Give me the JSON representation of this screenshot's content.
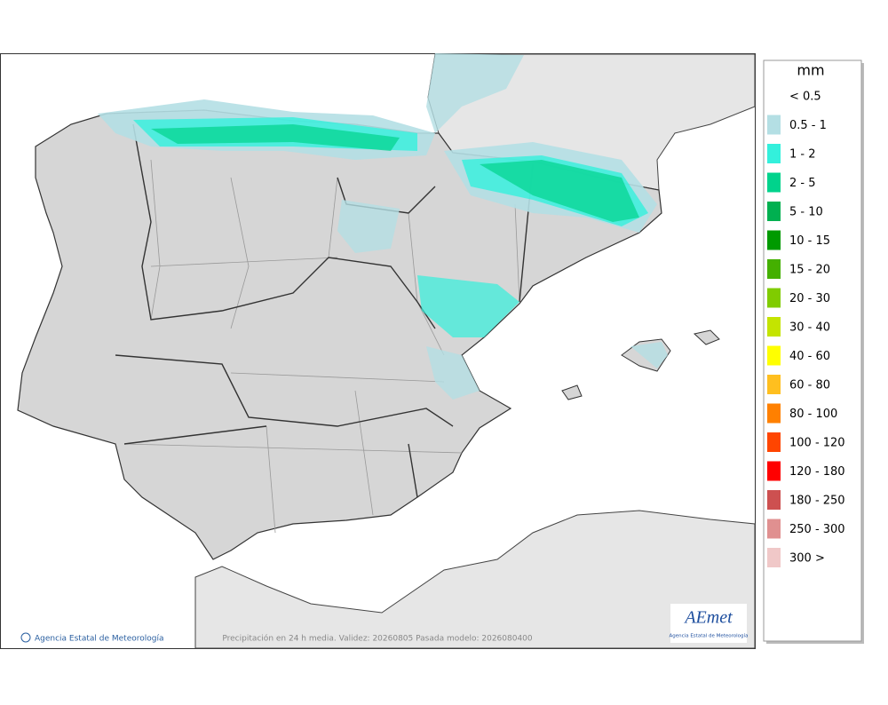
{
  "legend": {
    "title": "mm",
    "items": [
      {
        "label": "< 0.5",
        "color": "#ffffff"
      },
      {
        "label": "0.5 - 1",
        "color": "#b4dfe4"
      },
      {
        "label": "1 - 2",
        "color": "#33f0dc"
      },
      {
        "label": "2 - 5",
        "color": "#00d38c"
      },
      {
        "label": "5 - 10",
        "color": "#00b050"
      },
      {
        "label": "10 - 15",
        "color": "#009a00"
      },
      {
        "label": "15 - 20",
        "color": "#44b000"
      },
      {
        "label": "20 - 30",
        "color": "#80cc00"
      },
      {
        "label": "30 - 40",
        "color": "#c4e400"
      },
      {
        "label": "40 - 60",
        "color": "#ffff00"
      },
      {
        "label": "60 - 80",
        "color": "#ffbf1f"
      },
      {
        "label": "80 - 100",
        "color": "#ff8000"
      },
      {
        "label": "100 - 120",
        "color": "#ff4500"
      },
      {
        "label": "120 - 180",
        "color": "#ff0000"
      },
      {
        "label": "180 - 250",
        "color": "#cd5050"
      },
      {
        "label": "250 - 300",
        "color": "#e09090"
      },
      {
        "label": "300 >",
        "color": "#f0c8c8"
      }
    ]
  },
  "footer": {
    "credit": "Agencia Estatal de Meteorología",
    "caption": "Precipitación en 24 h media. Validez: 20260805 Pasada modelo: 2026080400"
  },
  "logo": {
    "text": "AEmet",
    "subtitle": "Agencia Estatal de Meteorología"
  }
}
